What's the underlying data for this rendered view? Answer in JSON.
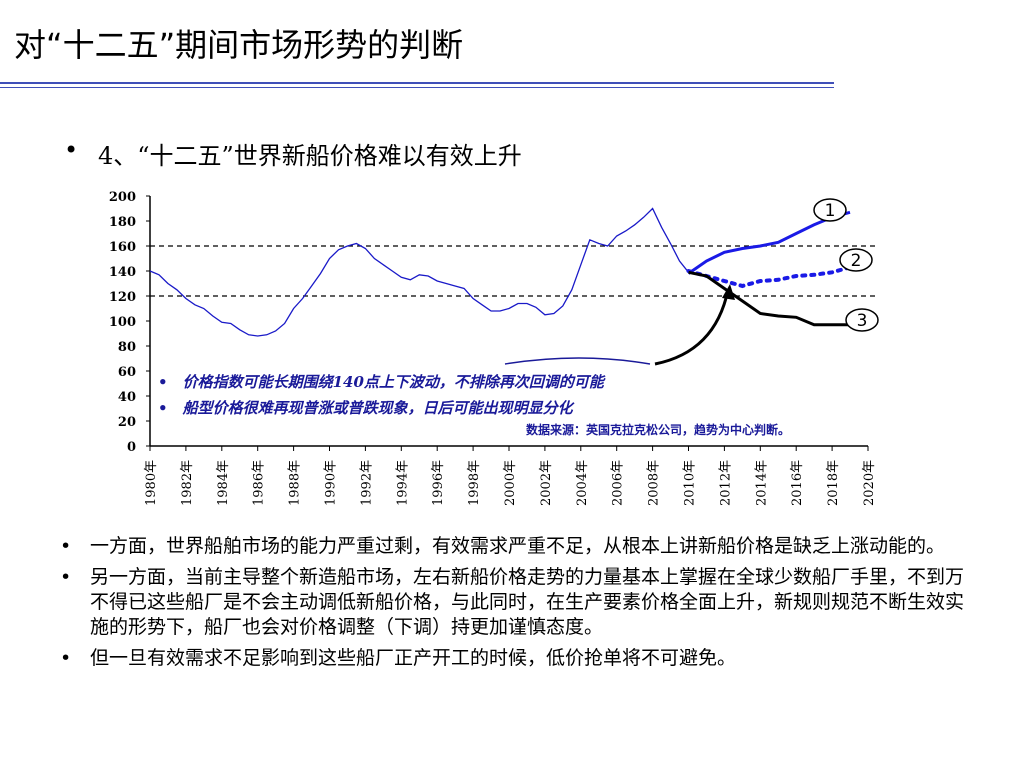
{
  "page": {
    "title": "对“十二五”期间市场形势的判断",
    "bullet_glyph": "•",
    "subtitle": "4、“十二五”世界新船价格难以有效上升"
  },
  "chart_data": {
    "type": "line",
    "y_ticks": [
      "200",
      "180",
      "160",
      "140",
      "120",
      "100",
      "80",
      "60",
      "40",
      "20",
      "0"
    ],
    "ylim": [
      0,
      200
    ],
    "x_ticks": [
      "1980年",
      "1982年",
      "1984年",
      "1986年",
      "1988年",
      "1990年",
      "1992年",
      "1994年",
      "1996年",
      "1998年",
      "2000年",
      "2002年",
      "2004年",
      "2006年",
      "2008年",
      "2010年",
      "2012年",
      "2014年",
      "2016年",
      "2018年",
      "2020年"
    ],
    "xlim": [
      1980,
      2020
    ],
    "reference_lines": [
      160,
      120
    ],
    "historical": {
      "x": [
        1980,
        1980.5,
        1981,
        1981.5,
        1982,
        1982.5,
        1983,
        1983.5,
        1984,
        1984.5,
        1985,
        1985.5,
        1986,
        1986.5,
        1987,
        1987.5,
        1988,
        1988.5,
        1989,
        1989.5,
        1990,
        1990.5,
        1991,
        1991.5,
        1992,
        1992.5,
        1993,
        1993.5,
        1994,
        1994.5,
        1995,
        1995.5,
        1996,
        1996.5,
        1997,
        1997.5,
        1998,
        1998.5,
        1999,
        1999.5,
        2000,
        2000.5,
        2001,
        2001.5,
        2002,
        2002.5,
        2003,
        2003.5,
        2004,
        2004.5,
        2005,
        2005.5,
        2006,
        2006.5,
        2007,
        2007.5,
        2008,
        2008.5,
        2009,
        2009.5,
        2010
      ],
      "y": [
        140,
        137,
        130,
        125,
        118,
        113,
        110,
        104,
        99,
        98,
        93,
        89,
        88,
        89,
        92,
        98,
        110,
        118,
        128,
        138,
        150,
        157,
        160,
        162,
        158,
        150,
        145,
        140,
        135,
        133,
        137,
        136,
        132,
        130,
        128,
        126,
        118,
        113,
        108,
        108,
        110,
        114,
        114,
        111,
        105,
        106,
        112,
        125,
        145,
        165,
        162,
        160,
        168,
        172,
        177,
        183,
        190,
        175,
        162,
        148,
        139
      ]
    },
    "series": [
      {
        "label": "1",
        "x": [
          2010,
          2011,
          2012,
          2013,
          2014,
          2015,
          2016,
          2017,
          2018,
          2019
        ],
        "y": [
          138,
          148,
          155,
          158,
          160,
          163,
          170,
          177,
          183,
          187
        ]
      },
      {
        "label": "2",
        "x": [
          2010,
          2011,
          2012,
          2013,
          2014,
          2015,
          2016,
          2017,
          2018,
          2019
        ],
        "y": [
          140,
          136,
          132,
          128,
          132,
          133,
          136,
          137,
          139,
          143
        ]
      },
      {
        "label": "3",
        "x": [
          2010,
          2011,
          2012,
          2013,
          2014,
          2015,
          2016,
          2017,
          2018,
          2019
        ],
        "y": [
          139,
          136,
          126,
          116,
          106,
          104,
          103,
          97,
          97,
          97
        ]
      }
    ],
    "annotations": [
      "•　价格指数可能长期围绕140点上下波动，不排除再次回调的可能",
      "•　船型价格很难再现普涨或普跌现象，日后可能出现明显分化"
    ],
    "source": "数据来源：英国克拉克松公司，趋势为中心判断。",
    "colors": {
      "historical": "#1a1ac8",
      "forecast1": "#1a1ae6",
      "forecast2": "#1a1ae6",
      "forecast3": "#000000",
      "annotation": "#1a1a99",
      "reference": "#000000"
    }
  },
  "notes": [
    "一方面，世界船舶市场的能力严重过剩，有效需求严重不足，从根本上讲新船价格是缺乏上涨动能的。",
    "另一方面，当前主导整个新造船市场，左右新船价格走势的力量基本上掌握在全球少数船厂手里，不到万不得已这些船厂是不会主动调低新船价格，与此同时，在生产要素价格全面上升，新规则规范不断生效实施的形势下，船厂也会对价格调整（下调）持更加谨慎态度。",
    "但一旦有效需求不足影响到这些船厂正产开工的时候，低价抢单将不可避免。"
  ]
}
